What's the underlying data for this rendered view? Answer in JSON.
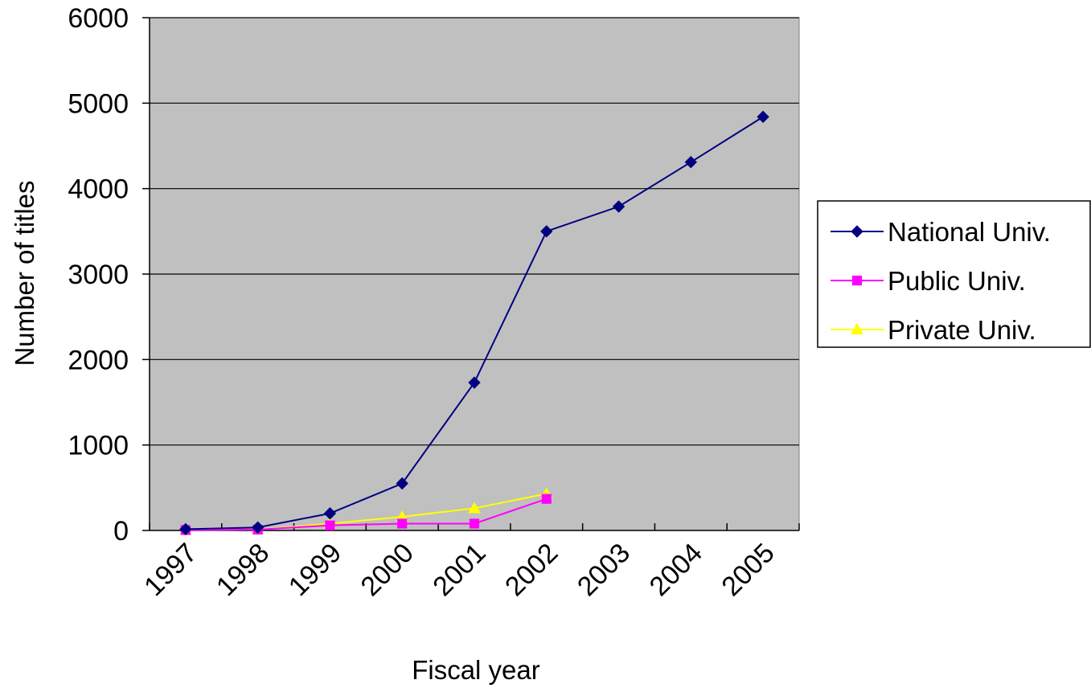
{
  "chart_data": {
    "type": "line",
    "title": "",
    "xlabel": "Fiscal year",
    "ylabel": "Number of titles",
    "categories": [
      "1997",
      "1998",
      "1999",
      "2000",
      "2001",
      "2002",
      "2003",
      "2004",
      "2005"
    ],
    "ylim": [
      0,
      6000
    ],
    "yticks": [
      0,
      1000,
      2000,
      3000,
      4000,
      5000,
      6000
    ],
    "grid": true,
    "legend_position": "right",
    "colors": {
      "plot_background": "#c0c0c0",
      "gridline": "#000000"
    },
    "series": [
      {
        "name": "National Univ.",
        "color": "#000080",
        "marker": "diamond",
        "values": [
          15,
          35,
          200,
          550,
          1730,
          3500,
          3790,
          4310,
          4840
        ]
      },
      {
        "name": "Public Univ.",
        "color": "#ff00ff",
        "marker": "square",
        "values": [
          5,
          10,
          60,
          80,
          80,
          370,
          null,
          null,
          null
        ]
      },
      {
        "name": "Private Univ.",
        "color": "#ffff00",
        "marker": "triangle",
        "values": [
          5,
          10,
          80,
          160,
          260,
          430,
          null,
          null,
          null
        ]
      }
    ]
  }
}
